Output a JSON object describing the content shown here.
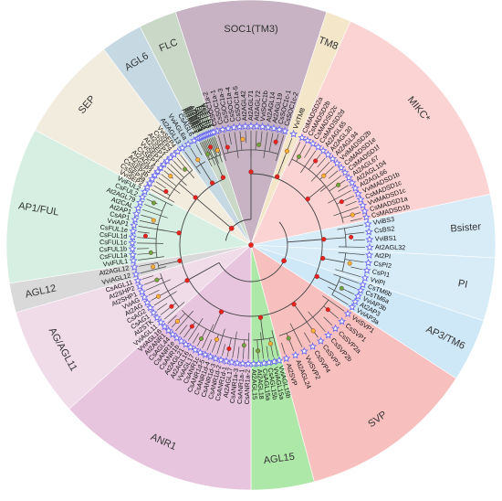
{
  "colors": {
    "branch": "#444444",
    "node_red": "#e8231f",
    "node_orange": "#f2b233",
    "node_green": "#6aa842",
    "star": "#6a6af0"
  },
  "sectors": [
    {
      "id": "soc1",
      "label": "SOC1(TM3)",
      "color": "#c7b3c3",
      "rot": 0,
      "leaves": [
        "CsSOC1a-2",
        "CsSOC1a-1",
        "CsSOC1a-3",
        "CsSOC1a-4",
        "CsSOC1a-5",
        "At2AGL42",
        "At2AGL71",
        "At2AGL72",
        "VviSOC1b",
        "At2AGL14",
        "At2AGL19",
        "CsSOC1c-1",
        "CsSOC1c-2"
      ]
    },
    {
      "id": "tm8",
      "label": "TM8",
      "color": "#f3e6c9",
      "rot": 0,
      "leaves": [
        "VviTM8"
      ]
    },
    {
      "id": "mikc",
      "label": "MIKC*",
      "color": "#fbd3d3",
      "rot": 0,
      "leaves": [
        "CsMADSD2a",
        "CsMADSD2b",
        "CsMADSD2c",
        "CsMADSD2d",
        "At2AGL65",
        "At2AGL30",
        "At2AGL94",
        "VviMADSD2b",
        "CsMADSD1e",
        "CsMADSD1f",
        "At2AGL67",
        "At2AGL104",
        "At2AGL66",
        "VviMADSD1b",
        "CsMADSD1c",
        "VviMADSD1c",
        "CsMADSD1a",
        "CsMADSD1b"
      ]
    },
    {
      "id": "bsister",
      "label": "Bsister",
      "color": "#d8ecf8",
      "rot": 90,
      "leaves": [
        "VviBS3",
        "CsBS2",
        "VviBS1",
        "At2AGL32"
      ]
    },
    {
      "id": "pi",
      "label": "PI",
      "color": "#d8ecf8",
      "rot": 90,
      "leaves": [
        "At2PI",
        "CsPI2",
        "CsPI1",
        "VviPI"
      ]
    },
    {
      "id": "ap3",
      "label": "AP3/TM6",
      "color": "#cfe8f7",
      "rot": 90,
      "leaves": [
        "CsTM6b",
        "CsTM6a",
        "VviAP3b",
        "At2AP3",
        "VviAP3a"
      ]
    },
    {
      "id": "svp",
      "label": "SVP",
      "color": "#f8bfbf",
      "rot": 0,
      "leaves": [
        "VviSVP1",
        "CsSVP1",
        "CsSVP2a",
        "CsSVP2b",
        "CsSVP3",
        "CsSVP4",
        "VviSVP2",
        "At2AGL24",
        "At2SVP"
      ]
    },
    {
      "id": "agl15",
      "label": "AGL15",
      "color": "#aee8a8",
      "rot": 0,
      "leaves": [
        "VviAGL15b",
        "VviAGL15a",
        "CsAGL15b",
        "CsAGL15a",
        "At2AGL18",
        "At2AGL15"
      ]
    },
    {
      "id": "anr1",
      "label": "ANR1",
      "color": "#e8c5de",
      "rot": 0,
      "leaves": [
        "CsANR1a-2",
        "CsANR1a-1",
        "CsANR1a-3",
        "At2AGL17",
        "CsANR1d-1",
        "CsANR1d-2",
        "CsANR1d-3",
        "CsANR1d-4",
        "CsANR1d-5",
        "CsANR1c",
        "VviAGL17",
        "At2AGL16",
        "At2AGL21",
        "CsANR1b",
        "CsANR1e",
        "CsAGL44",
        "At2ANR1",
        "VviAGL16"
      ]
    },
    {
      "id": "ag",
      "label": "AG/AGL11",
      "color": "#f0dbe9",
      "rot": 0,
      "leaves": [
        "VviAGL11",
        "At2STK",
        "CsAG1",
        "CsAG2",
        "At2AG",
        "VviAG",
        "At2SHP1",
        "At2SHP2",
        "CsAGL11"
      ]
    },
    {
      "id": "agl12",
      "label": "AGL12",
      "color": "#d9d9d9",
      "rot": -90,
      "leaves": [
        "VviAGL12",
        "At2AGL12"
      ]
    },
    {
      "id": "ap1",
      "label": "AP1/FUL",
      "color": "#d6efe2",
      "rot": -90,
      "leaves": [
        "VviFUL1",
        "CsFUL1a",
        "CsFUL1b",
        "CsFUL1c",
        "CsFUL1d",
        "CsFUL1e",
        "VviAP1",
        "CsAP1",
        "At2AP1",
        "At2CAL",
        "At2AGL79",
        "CsFUL2",
        "VviFUL2"
      ]
    },
    {
      "id": "sep",
      "label": "SEP",
      "color": "#f1ecde",
      "rot": -60,
      "leaves": [
        "VviSEP2",
        "CsSEP3a",
        "CsSEP3b",
        "At2SEP3",
        "At2AGL6",
        "CsSEP1",
        "VviSEP1",
        "At2SEP1",
        "At2SEP2",
        "CsSEP4",
        "VviSEP4"
      ]
    },
    {
      "id": "agl6",
      "label": "AGL6",
      "color": "#c6d9e3",
      "rot": -40,
      "leaves": [
        "At2AGL13",
        "VviAGL6a",
        "CsAGL6"
      ]
    },
    {
      "id": "flc",
      "label": "FLC",
      "color": "#c9d8c7",
      "rot": -20,
      "leaves": [
        "At2MAF1",
        "At2MAF2",
        "At2MAF3",
        "At2MAF4",
        "At2MAF5",
        "At2FLC",
        "CsFLC1",
        "CsFLC2",
        "CsFLC3",
        "VviFLC1",
        "VviFLC2"
      ]
    }
  ]
}
